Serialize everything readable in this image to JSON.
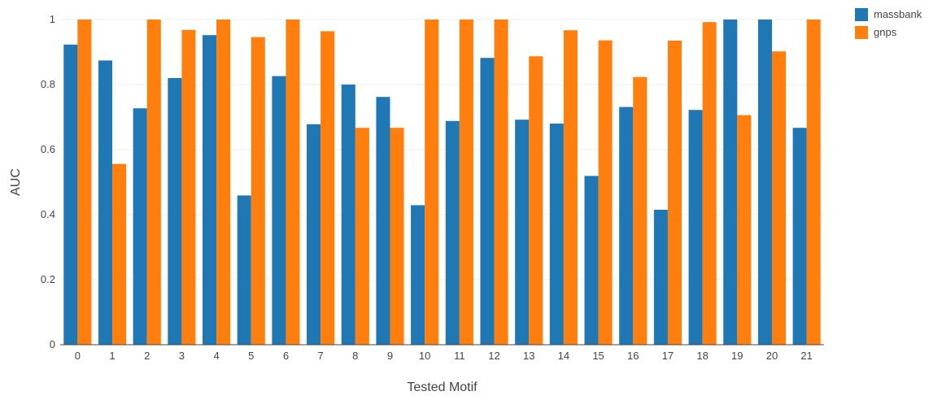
{
  "chart_data": {
    "type": "bar",
    "title": "",
    "xlabel": "Tested Motif",
    "ylabel": "AUC",
    "ylim": [
      0,
      1
    ],
    "yticks": [
      "0",
      "0.2",
      "0.4",
      "0.6",
      "0.8",
      "1"
    ],
    "grid": true,
    "legend_position": "top-right",
    "categories": [
      "0",
      "1",
      "2",
      "3",
      "4",
      "5",
      "6",
      "7",
      "8",
      "9",
      "10",
      "11",
      "12",
      "13",
      "14",
      "15",
      "16",
      "17",
      "18",
      "19",
      "20",
      "21"
    ],
    "series": [
      {
        "name": "massbank",
        "color": "#1f77b4",
        "values": [
          0.923,
          0.874,
          0.727,
          0.82,
          0.952,
          0.459,
          0.826,
          0.678,
          0.8,
          0.762,
          0.429,
          0.688,
          0.882,
          0.692,
          0.68,
          0.519,
          0.731,
          0.415,
          0.722,
          1.0,
          1.0,
          0.667
        ]
      },
      {
        "name": "gnps",
        "color": "#ff7f0e",
        "values": [
          1.0,
          0.556,
          1.0,
          0.968,
          1.0,
          0.946,
          1.0,
          0.964,
          0.667,
          0.667,
          1.0,
          1.0,
          1.0,
          0.887,
          0.967,
          0.936,
          0.823,
          0.935,
          0.992,
          0.706,
          0.902,
          1.0
        ]
      }
    ]
  }
}
